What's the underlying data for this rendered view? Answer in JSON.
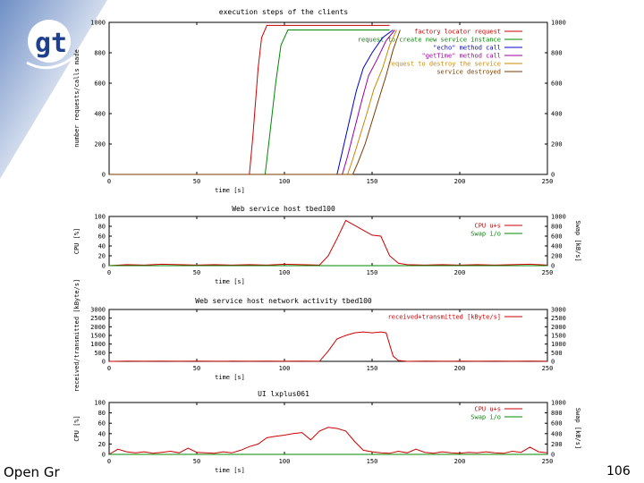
{
  "colors": {
    "background_blue": "#6f8fc6",
    "logo_blue": "#1f3f8f",
    "series_red": "#cc0000",
    "series_green": "#008800",
    "series_blue": "#0000cc",
    "series_magenta": "#990099",
    "series_orange": "#cc8800",
    "series_brown": "#7a3b00"
  },
  "logo": {
    "text": "gt",
    "icon": "globus-logo-icon"
  },
  "footer": {
    "left_text": "Open Gr",
    "page_number": "106"
  },
  "chart_data": [
    {
      "type": "line",
      "title": "execution steps of the clients",
      "xlabel": "time [s]",
      "ylabel": "number requests/calls made",
      "xlim": [
        0,
        250
      ],
      "ylim": [
        0,
        1000
      ],
      "xticks": [
        0,
        50,
        100,
        150,
        200,
        250
      ],
      "yticks": [
        0,
        200,
        400,
        600,
        800,
        1000
      ],
      "y2ticks": [
        0,
        200,
        400,
        600,
        800,
        1000
      ],
      "legend_position": "top-right",
      "series": [
        {
          "name": "factory locator request",
          "color": "#cc0000",
          "x": [
            0,
            80,
            82,
            85,
            87,
            90,
            160
          ],
          "y": [
            0,
            0,
            250,
            700,
            900,
            980,
            980
          ]
        },
        {
          "name": "request to create new service instance",
          "color": "#008800",
          "x": [
            0,
            89,
            91,
            95,
            98,
            102,
            160
          ],
          "y": [
            0,
            0,
            200,
            600,
            850,
            950,
            950
          ]
        },
        {
          "name": "\"echo\" method call",
          "color": "#0000cc",
          "x": [
            0,
            130,
            133,
            137,
            141,
            145,
            150,
            156,
            162
          ],
          "y": [
            0,
            0,
            150,
            350,
            550,
            700,
            800,
            900,
            950
          ]
        },
        {
          "name": "\"getTime\" method call",
          "color": "#990099",
          "x": [
            0,
            133,
            136,
            140,
            144,
            148,
            153,
            158,
            163
          ],
          "y": [
            0,
            0,
            120,
            300,
            480,
            650,
            760,
            880,
            950
          ]
        },
        {
          "name": "request to destroy the service",
          "color": "#cc8800",
          "x": [
            0,
            136,
            139,
            143,
            147,
            151,
            156,
            160,
            164
          ],
          "y": [
            0,
            0,
            100,
            250,
            400,
            560,
            700,
            850,
            950
          ]
        },
        {
          "name": "service destroyed",
          "color": "#7a3b00",
          "x": [
            0,
            139,
            142,
            146,
            150,
            154,
            158,
            162,
            166
          ],
          "y": [
            0,
            0,
            80,
            200,
            350,
            500,
            650,
            820,
            950
          ]
        }
      ]
    },
    {
      "type": "line",
      "title": "Web service host tbed100",
      "xlabel": "time [s]",
      "ylabel": "CPU [%]",
      "y2label": "Swap [kB/s]",
      "xlim": [
        0,
        250
      ],
      "ylim": [
        0,
        100
      ],
      "xticks": [
        0,
        50,
        100,
        150,
        200,
        250
      ],
      "yticks": [
        0,
        20,
        40,
        60,
        80,
        100
      ],
      "y2ticks": [
        0,
        200,
        400,
        600,
        800,
        1000
      ],
      "legend_position": "top-right",
      "series": [
        {
          "name": "CPU u+s",
          "color": "#cc0000",
          "x": [
            0,
            10,
            20,
            30,
            40,
            50,
            60,
            70,
            80,
            90,
            100,
            110,
            120,
            125,
            130,
            135,
            140,
            145,
            150,
            155,
            160,
            165,
            170,
            180,
            190,
            200,
            210,
            220,
            230,
            240,
            250
          ],
          "y": [
            0,
            2,
            1,
            3,
            2,
            1,
            2,
            1,
            2,
            1,
            3,
            2,
            1,
            20,
            55,
            92,
            82,
            72,
            62,
            60,
            20,
            5,
            2,
            1,
            2,
            1,
            2,
            1,
            2,
            3,
            1
          ]
        },
        {
          "name": "Swap i/o",
          "color": "#008800",
          "x": [
            0,
            250
          ],
          "y": [
            0,
            0
          ]
        }
      ]
    },
    {
      "type": "line",
      "title": "Web service host network activity tbed100",
      "xlabel": "time [s]",
      "ylabel": "received/transmitted [kByte/s]",
      "xlim": [
        0,
        250
      ],
      "ylim": [
        0,
        3000
      ],
      "xticks": [
        0,
        50,
        100,
        150,
        200,
        250
      ],
      "yticks": [
        0,
        500,
        1000,
        1500,
        2000,
        2500,
        3000
      ],
      "y2ticks": [
        0,
        500,
        1000,
        1500,
        2000,
        2500,
        3000
      ],
      "legend_position": "top-right",
      "series": [
        {
          "name": "received+transmitted [kByte/s]",
          "color": "#cc0000",
          "x": [
            0,
            10,
            20,
            30,
            40,
            50,
            60,
            70,
            80,
            90,
            100,
            110,
            120,
            125,
            130,
            135,
            140,
            145,
            150,
            155,
            158,
            162,
            165,
            170,
            180,
            190,
            200,
            210,
            220,
            230,
            240,
            250
          ],
          "y": [
            0,
            10,
            5,
            10,
            5,
            10,
            5,
            10,
            5,
            10,
            5,
            10,
            5,
            600,
            1300,
            1500,
            1650,
            1700,
            1650,
            1700,
            1650,
            300,
            50,
            0,
            10,
            5,
            10,
            5,
            10,
            5,
            10,
            5
          ]
        }
      ]
    },
    {
      "type": "line",
      "title": "UI lxplus061",
      "xlabel": "time [s]",
      "ylabel": "CPU [%]",
      "y2label": "Swap [kB/s]",
      "xlim": [
        0,
        250
      ],
      "ylim": [
        0,
        100
      ],
      "xticks": [
        0,
        50,
        100,
        150,
        200,
        250
      ],
      "yticks": [
        0,
        20,
        40,
        60,
        80,
        100
      ],
      "y2ticks": [
        0,
        200,
        400,
        600,
        800,
        1000
      ],
      "legend_position": "top-right",
      "series": [
        {
          "name": "CPU u+s",
          "color": "#cc0000",
          "x": [
            0,
            5,
            10,
            15,
            20,
            25,
            30,
            35,
            40,
            45,
            50,
            55,
            60,
            65,
            70,
            75,
            80,
            85,
            90,
            95,
            100,
            105,
            110,
            115,
            120,
            125,
            130,
            135,
            140,
            145,
            150,
            155,
            160,
            165,
            170,
            175,
            180,
            185,
            190,
            195,
            200,
            205,
            210,
            215,
            220,
            225,
            230,
            235,
            240,
            245,
            250
          ],
          "y": [
            0,
            10,
            5,
            3,
            5,
            2,
            4,
            6,
            3,
            12,
            4,
            3,
            2,
            5,
            3,
            8,
            15,
            20,
            32,
            35,
            37,
            40,
            42,
            28,
            45,
            52,
            50,
            45,
            25,
            8,
            5,
            3,
            2,
            6,
            3,
            10,
            4,
            2,
            5,
            3,
            2,
            4,
            3,
            5,
            3,
            2,
            6,
            4,
            14,
            5,
            3
          ]
        },
        {
          "name": "Swap i/o",
          "color": "#008800",
          "x": [
            0,
            250
          ],
          "y": [
            0,
            0
          ]
        }
      ]
    }
  ]
}
